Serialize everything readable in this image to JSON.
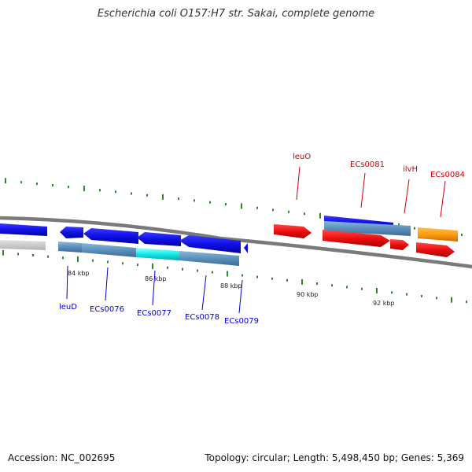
{
  "title": "Escherichia coli O157:H7 str. Sakai, complete genome",
  "footer": {
    "accession": "Accession: NC_002695",
    "stats": "Topology: circular; Length: 5,498,450 bp; Genes: 5,369"
  },
  "colors": {
    "reverse_label": "#0000cc",
    "forward_label": "#cc0000",
    "ruler_ticks": "#2a8a2a",
    "backbone": "#888888"
  },
  "kbp_labels": [
    "84 kbp",
    "86 kbp",
    "88 kbp",
    "90 kbp",
    "92 kbp"
  ],
  "genes": [
    {
      "label": "leuD",
      "strand": "reverse"
    },
    {
      "label": "ECs0076",
      "strand": "reverse"
    },
    {
      "label": "ECs0077",
      "strand": "reverse"
    },
    {
      "label": "ECs0078",
      "strand": "reverse"
    },
    {
      "label": "ECs0079",
      "strand": "reverse"
    },
    {
      "label": "leuO",
      "strand": "forward"
    },
    {
      "label": "ECs0081",
      "strand": "forward"
    },
    {
      "label": "ilvH",
      "strand": "forward"
    },
    {
      "label": "ECs0084",
      "strand": "forward"
    }
  ]
}
